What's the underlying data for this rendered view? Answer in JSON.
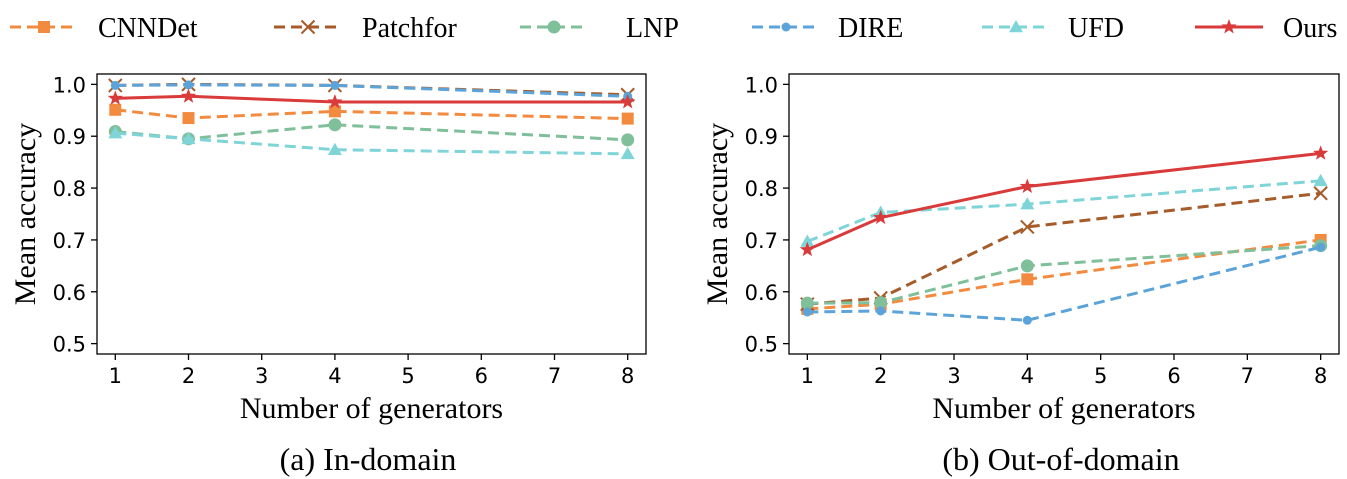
{
  "legend": [
    {
      "name": "CNNDet",
      "color": "#f28b3f",
      "marker": "square",
      "dashed": true
    },
    {
      "name": "Patchfor",
      "color": "#a65b2a",
      "marker": "x",
      "dashed": true
    },
    {
      "name": "LNP",
      "color": "#7fbf9a",
      "marker": "circle",
      "dashed": true
    },
    {
      "name": "DIRE",
      "color": "#5ba3d8",
      "marker": "dot",
      "dashed": true
    },
    {
      "name": "UFD",
      "color": "#7fd4d8",
      "marker": "triangle",
      "dashed": true
    },
    {
      "name": "Ours",
      "color": "#d93a3a",
      "marker": "star",
      "dashed": false
    }
  ],
  "chart_data": [
    {
      "type": "line",
      "caption": "(a) In-domain",
      "xlabel": "Number of generators",
      "ylabel": "Mean accuracy",
      "xlim": [
        0.75,
        8.25
      ],
      "ylim": [
        0.48,
        1.02
      ],
      "xticks": [
        1,
        2,
        3,
        4,
        5,
        6,
        7,
        8
      ],
      "yticks": [
        0.5,
        0.6,
        0.7,
        0.8,
        0.9,
        1.0
      ],
      "ytick_labels": [
        "0.5",
        "0.6",
        "0.7",
        "0.8",
        "0.9",
        "1.0"
      ],
      "x": [
        1,
        2,
        4,
        8
      ],
      "series": [
        {
          "name": "CNNDet",
          "values": [
            0.951,
            0.935,
            0.948,
            0.934
          ]
        },
        {
          "name": "Patchfor",
          "values": [
            0.998,
            1.0,
            0.998,
            0.98
          ]
        },
        {
          "name": "LNP",
          "values": [
            0.909,
            0.895,
            0.922,
            0.893
          ]
        },
        {
          "name": "DIRE",
          "values": [
            0.998,
            0.999,
            0.998,
            0.977
          ]
        },
        {
          "name": "UFD",
          "values": [
            0.906,
            0.895,
            0.874,
            0.866
          ]
        },
        {
          "name": "Ours",
          "values": [
            0.973,
            0.977,
            0.966,
            0.966
          ]
        }
      ]
    },
    {
      "type": "line",
      "caption": "(b) Out-of-domain",
      "xlabel": "Number of generators",
      "ylabel": "Mean accuracy",
      "xlim": [
        0.75,
        8.25
      ],
      "ylim": [
        0.48,
        1.02
      ],
      "xticks": [
        1,
        2,
        3,
        4,
        5,
        6,
        7,
        8
      ],
      "yticks": [
        0.5,
        0.6,
        0.7,
        0.8,
        0.9,
        1.0
      ],
      "ytick_labels": [
        "0.5",
        "0.6",
        "0.7",
        "0.8",
        "0.9",
        "1.0"
      ],
      "x": [
        1,
        2,
        4,
        8
      ],
      "series": [
        {
          "name": "CNNDet",
          "values": [
            0.567,
            0.576,
            0.624,
            0.7
          ]
        },
        {
          "name": "Patchfor",
          "values": [
            0.576,
            0.588,
            0.725,
            0.79
          ]
        },
        {
          "name": "LNP",
          "values": [
            0.578,
            0.579,
            0.65,
            0.689
          ]
        },
        {
          "name": "DIRE",
          "values": [
            0.561,
            0.563,
            0.545,
            0.686
          ]
        },
        {
          "name": "UFD",
          "values": [
            0.697,
            0.753,
            0.769,
            0.814
          ]
        },
        {
          "name": "Ours",
          "values": [
            0.681,
            0.743,
            0.803,
            0.867
          ]
        }
      ]
    }
  ]
}
